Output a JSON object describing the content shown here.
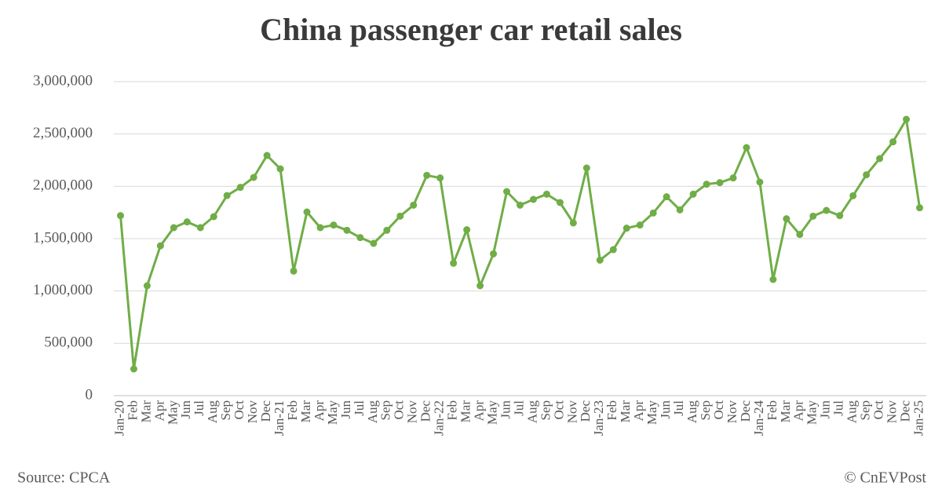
{
  "chart_data": {
    "type": "line",
    "title": "China passenger car retail sales",
    "source": "Source: CPCA",
    "credit": "© CnEVPost",
    "categories": [
      "Jan-20",
      "Feb",
      "Mar",
      "Apr",
      "May",
      "Jun",
      "Jul",
      "Aug",
      "Sep",
      "Oct",
      "Nov",
      "Dec",
      "Jan-21",
      "Feb",
      "Mar",
      "Apr",
      "May",
      "Jun",
      "Jul",
      "Aug",
      "Sep",
      "Oct",
      "Nov",
      "Dec",
      "Jan-22",
      "Feb",
      "Mar",
      "Apr",
      "May",
      "Jun",
      "Jul",
      "Aug",
      "Sep",
      "Oct",
      "Nov",
      "Dec",
      "Jan-23",
      "Feb",
      "Mar",
      "Apr",
      "May",
      "Jun",
      "Jul",
      "Aug",
      "Sep",
      "Oct",
      "Nov",
      "Dec",
      "Jan-24",
      "Feb",
      "Mar",
      "Apr",
      "May",
      "Jun",
      "Jul",
      "Aug",
      "Sep",
      "Oct",
      "Nov",
      "Dec",
      "Jan-25"
    ],
    "values": [
      1720000,
      255000,
      1050000,
      1432000,
      1605000,
      1660000,
      1605000,
      1710000,
      1912000,
      1990000,
      2085000,
      2295000,
      2167000,
      1190000,
      1755000,
      1605000,
      1630000,
      1580000,
      1510000,
      1455000,
      1580000,
      1715000,
      1820000,
      2105000,
      2080000,
      1265000,
      1585000,
      1050000,
      1355000,
      1950000,
      1820000,
      1875000,
      1925000,
      1845000,
      1650000,
      2175000,
      1295000,
      1395000,
      1600000,
      1630000,
      1745000,
      1900000,
      1775000,
      1925000,
      2020000,
      2035000,
      2080000,
      2370000,
      2040000,
      1110000,
      1690000,
      1540000,
      1715000,
      1770000,
      1720000,
      1910000,
      2110000,
      2265000,
      2425000,
      2640000,
      1795000
    ],
    "color": "#70ad47",
    "ylim": [
      0,
      3000000
    ],
    "yticks": [
      0,
      {
        "value": 500000,
        "label": "500,000"
      },
      {
        "value": 1000000,
        "label": "1,000,000"
      },
      {
        "value": 1500000,
        "label": "1,500,000"
      },
      {
        "value": 2000000,
        "label": "2,000,000"
      },
      {
        "value": 2500000,
        "label": "2,500,000"
      },
      {
        "value": 3000000,
        "label": "3,000,000"
      }
    ],
    "grid": true
  }
}
